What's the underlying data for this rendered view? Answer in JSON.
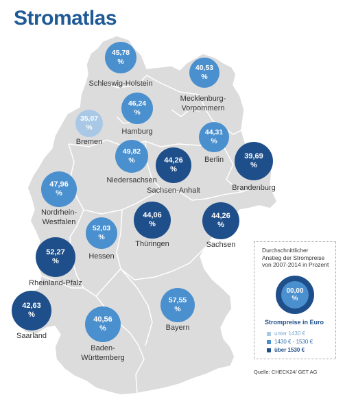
{
  "title": "Stromatlas",
  "states": [
    {
      "id": "schleswig-holstein",
      "value": "45,78",
      "unit": "%",
      "label_lines": [
        "Schleswig-Holstein"
      ],
      "tier": "mid"
    },
    {
      "id": "mecklenburg-vorpommern",
      "value": "40,53",
      "unit": "%",
      "label_lines": [
        "Mecklenburg-",
        "Vorpommern"
      ],
      "tier": "mid"
    },
    {
      "id": "hamburg",
      "value": "46,24",
      "unit": "%",
      "label_lines": [
        "Hamburg"
      ],
      "tier": "mid"
    },
    {
      "id": "bremen",
      "value": "35,07",
      "unit": "%",
      "label_lines": [
        "Bremen"
      ],
      "tier": "low"
    },
    {
      "id": "berlin",
      "value": "44,31",
      "unit": "%",
      "label_lines": [
        "Berlin"
      ],
      "tier": "mid"
    },
    {
      "id": "niedersachsen",
      "value": "49,82",
      "unit": "%",
      "label_lines": [
        "Niedersachsen"
      ],
      "tier": "mid"
    },
    {
      "id": "sachsen-anhalt",
      "value": "44,26",
      "unit": "%",
      "label_lines": [
        "Sachsen-Anhalt"
      ],
      "tier": "high"
    },
    {
      "id": "brandenburg",
      "value": "39,69",
      "unit": "%",
      "label_lines": [
        "Brandenburg"
      ],
      "tier": "high"
    },
    {
      "id": "nordrhein-westfalen",
      "value": "47,96",
      "unit": "%",
      "label_lines": [
        "Nordrhein-",
        "Westfalen"
      ],
      "tier": "mid"
    },
    {
      "id": "hessen",
      "value": "52,03",
      "unit": "%",
      "label_lines": [
        "Hessen"
      ],
      "tier": "mid"
    },
    {
      "id": "thueringen",
      "value": "44,06",
      "unit": "%",
      "label_lines": [
        "Thüringen"
      ],
      "tier": "high"
    },
    {
      "id": "sachsen",
      "value": "44,26",
      "unit": "%",
      "label_lines": [
        "Sachsen"
      ],
      "tier": "high"
    },
    {
      "id": "rheinland-pfalz",
      "value": "52,27",
      "unit": "%",
      "label_lines": [
        "Rheinland-Pfalz"
      ],
      "tier": "high"
    },
    {
      "id": "saarland",
      "value": "42,63",
      "unit": "%",
      "label_lines": [
        "Saarland"
      ],
      "tier": "high"
    },
    {
      "id": "bayern",
      "value": "57,55",
      "unit": "%",
      "label_lines": [
        "Bayern"
      ],
      "tier": "mid"
    },
    {
      "id": "baden-wuerttemberg",
      "value": "40,56",
      "unit": "%",
      "label_lines": [
        "Baden-",
        "Württemberg"
      ],
      "tier": "mid"
    }
  ],
  "legend": {
    "description": [
      "Durchschnittlicher",
      "Anstieg der Strompreise",
      "von 2007-2014 in Prozent"
    ],
    "example_value": "00,00",
    "example_unit": "%",
    "heading": "Strompreise in Euro",
    "items": [
      {
        "label": "unter 1430 €",
        "tier": "low"
      },
      {
        "label": "1430 € - 1530 €",
        "tier": "mid"
      },
      {
        "label": "über 1530 €",
        "tier": "high"
      }
    ]
  },
  "source": "Quelle: CHECK24/ GET AG",
  "colors": {
    "low": "#a9c8e6",
    "mid": "#4a8fce",
    "high": "#1f4f8a",
    "map_fill": "#dcdcdc",
    "map_border": "#ffffff",
    "title": "#1f5a96"
  }
}
